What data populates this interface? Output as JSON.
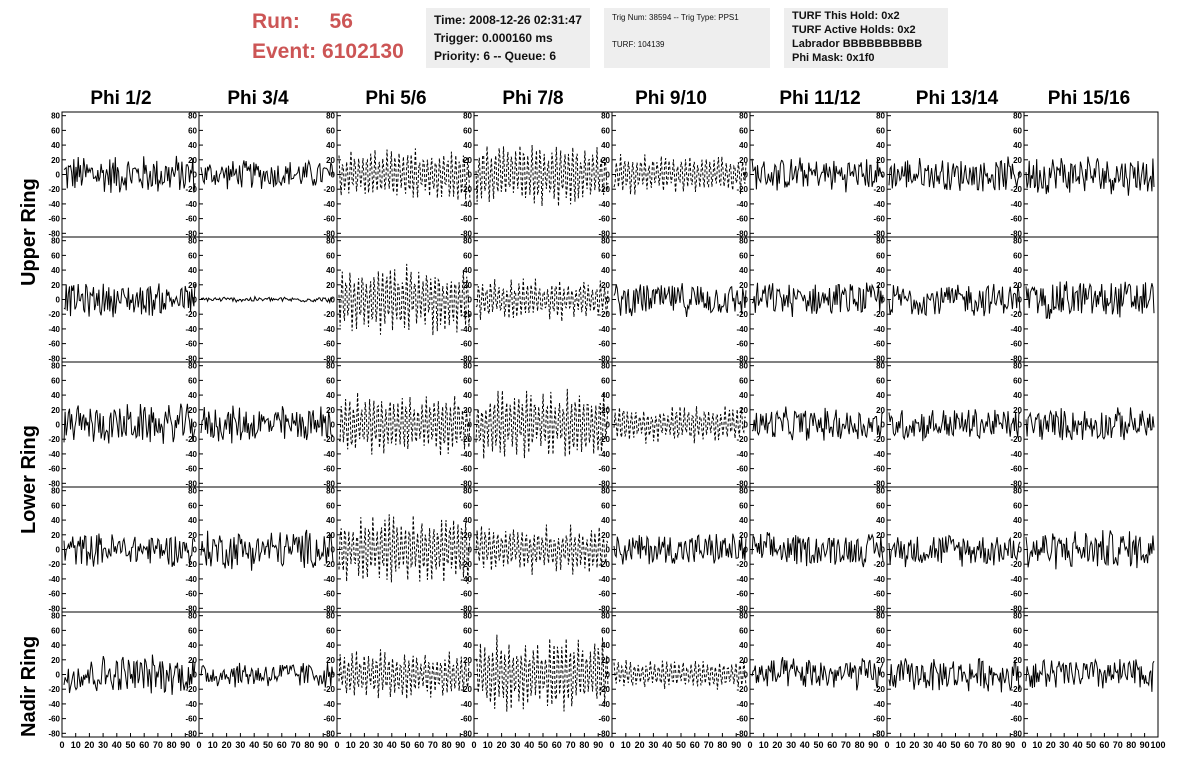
{
  "header": {
    "run_label": "Run:",
    "run_value": "56",
    "event_label": "Event:",
    "event_value": "6102130",
    "time_line": "Time: 2008-12-26 02:31:47",
    "trigger_line": "Trigger: 0.000160 ms",
    "priority_line": "Priority: 6 -- Queue: 6",
    "trig_line": "Trig Num: 38594 -- Trig Type: PPS1",
    "turf_line": "TURF: 104139",
    "hold_line": "TURF This Hold: 0x2",
    "active_line": "TURF Active Holds: 0x2",
    "labrador_line": "Labrador BBBBBBBBBB",
    "phimask_line": "Phi Mask: 0x1f0"
  },
  "columns": [
    "Phi 1/2",
    "Phi 3/4",
    "Phi 5/6",
    "Phi 7/8",
    "Phi 9/10",
    "Phi 11/12",
    "Phi 13/14",
    "Phi 15/16"
  ],
  "rows": [
    "Upper Ring",
    "Lower Ring",
    "Nadir Ring"
  ],
  "colors": {
    "run_text": "#cc5555",
    "info_bg": "#eeeeee",
    "trace": "#000000"
  },
  "chart_data": {
    "type": "line",
    "layout": "5x8 grid of waveform panels",
    "x_ticks": [
      0,
      10,
      20,
      30,
      40,
      50,
      60,
      70,
      80,
      90,
      100
    ],
    "y_ticks": [
      80,
      60,
      40,
      20,
      0,
      -20,
      -40,
      -60,
      -80
    ],
    "xlim": [
      0,
      100
    ],
    "ylim": [
      -85,
      85
    ],
    "grid": false,
    "panel_amplitude": [
      [
        30,
        22,
        38,
        45,
        30,
        25,
        25,
        30
      ],
      [
        25,
        4,
        50,
        30,
        25,
        25,
        25,
        30
      ],
      [
        30,
        28,
        45,
        50,
        28,
        25,
        25,
        25
      ],
      [
        25,
        30,
        50,
        35,
        25,
        25,
        25,
        30
      ],
      [
        30,
        20,
        35,
        55,
        22,
        25,
        25,
        25
      ]
    ],
    "panel_dashed": [
      [
        false,
        false,
        true,
        true,
        true,
        false,
        false,
        false
      ],
      [
        false,
        false,
        true,
        true,
        false,
        false,
        false,
        false
      ],
      [
        false,
        false,
        true,
        true,
        true,
        false,
        false,
        false
      ],
      [
        false,
        false,
        true,
        true,
        false,
        false,
        false,
        false
      ],
      [
        false,
        false,
        true,
        true,
        true,
        false,
        false,
        false
      ]
    ]
  }
}
